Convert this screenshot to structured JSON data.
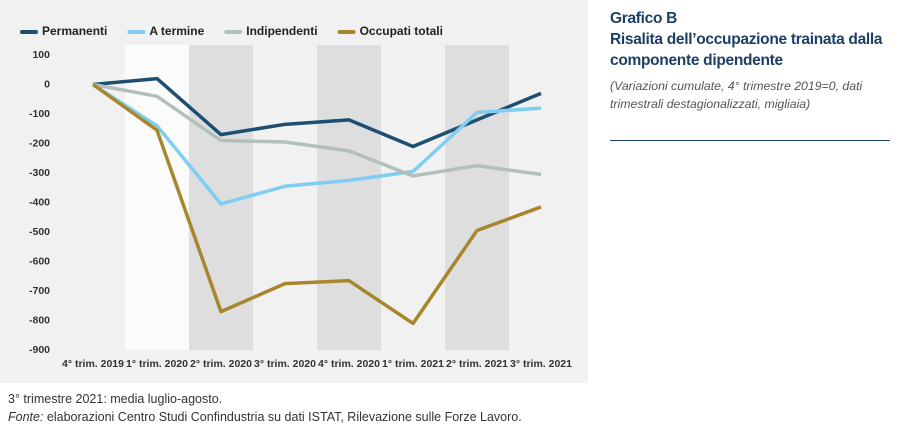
{
  "chart_data": {
    "type": "line",
    "figure_label": "Grafico B",
    "title": "Risalita dell’occupazione trainata dalla componente dipendente",
    "subtitle": "(Variazioni cumulate, 4° trimestre 2019=0, dati trimestrali destagionalizzati, migliaia)",
    "categories": [
      "4° trim. 2019",
      "1° trim. 2020",
      "2° trim. 2020",
      "3° trim. 2020",
      "4° trim. 2020",
      "1° trim. 2021",
      "2° trim. 2021",
      "3° trim. 2021"
    ],
    "series": [
      {
        "name": "Permanenti",
        "color": "#1d4f72",
        "values": [
          0,
          20,
          -170,
          -135,
          -120,
          -210,
          -120,
          -30
        ]
      },
      {
        "name": "A termine",
        "color": "#7fcdf0",
        "values": [
          0,
          -140,
          -405,
          -345,
          -325,
          -295,
          -95,
          -80
        ]
      },
      {
        "name": "Indipendenti",
        "color": "#b3bfbb",
        "values": [
          0,
          -40,
          -190,
          -195,
          -225,
          -310,
          -275,
          -305
        ]
      },
      {
        "name": "Occupati totali",
        "color": "#a8862e",
        "values": [
          0,
          -155,
          -770,
          -675,
          -665,
          -810,
          -495,
          -415
        ]
      }
    ],
    "ylim": [
      -900,
      100
    ],
    "yticks": [
      -900,
      -800,
      -700,
      -600,
      -500,
      -400,
      -300,
      -200,
      -100,
      0,
      100
    ],
    "legend": "top",
    "note": "3° trimestre 2021: media luglio-agosto.",
    "source_label": "Fonte:",
    "source": "elaborazioni Centro Studi Confindustria su dati ISTAT, Rilevazione sulle Forze Lavoro."
  }
}
